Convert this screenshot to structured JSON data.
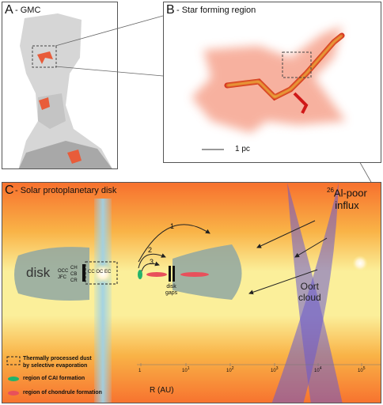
{
  "panelA": {
    "letter": "A",
    "title": "- GMC"
  },
  "panelB": {
    "letter": "B",
    "title": "- Star forming region",
    "scale_label": "1 pc"
  },
  "panelC": {
    "letter": "C",
    "title": "- Solar protoplanetary disk",
    "disk_label": "disk",
    "labels_col1": [
      "OCC",
      "JFC"
    ],
    "labels_col2": [
      "CH",
      "CB",
      "CR"
    ],
    "labels_col3": [
      "CC",
      "OC",
      "EC"
    ],
    "arrow_numbers": [
      "1",
      "2",
      "3"
    ],
    "disk_gaps_label": [
      "disk",
      "gaps"
    ],
    "al_influx": {
      "superscript": "26",
      "line1": "Al-poor",
      "line2": "influx"
    },
    "oort_label": [
      "Oort",
      "cloud"
    ],
    "axis_label": "R (AU)",
    "ticks": [
      {
        "base": "1",
        "exp": ""
      },
      {
        "base": "10",
        "exp": "1"
      },
      {
        "base": "10",
        "exp": "2"
      },
      {
        "base": "10",
        "exp": "3"
      },
      {
        "base": "10",
        "exp": "4"
      },
      {
        "base": "10",
        "exp": "5"
      }
    ],
    "legend": {
      "dust_line1": "Thermally processed dust",
      "dust_line2": "by selective evaporation",
      "cai": "region of CAI formation",
      "chondrule": "region of chondrule formation"
    },
    "colors": {
      "cai": "#23b36b",
      "chondrule": "#e8505b",
      "oort": "#6a5acd",
      "disk": "#8fa7a2"
    }
  }
}
